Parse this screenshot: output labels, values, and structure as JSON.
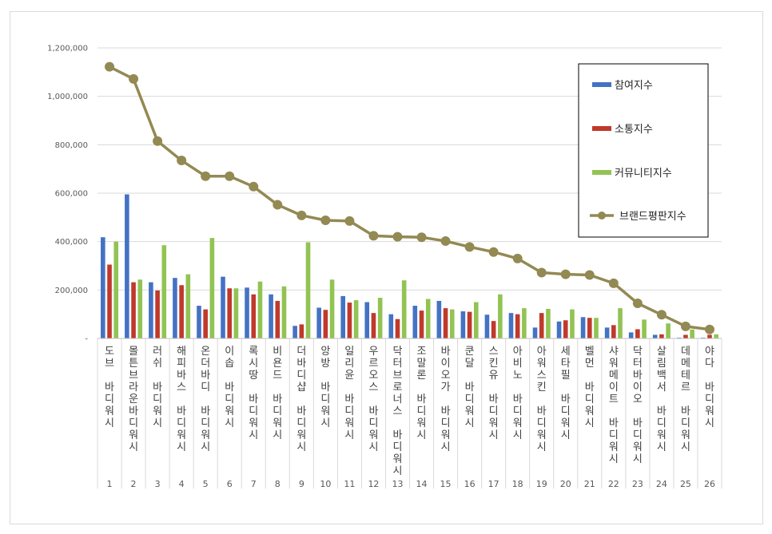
{
  "chart_data": {
    "type": "bar",
    "title": "",
    "xlabel": "",
    "ylabel": "",
    "ylim": [
      0,
      1200000
    ],
    "yticks": [
      0,
      200000,
      400000,
      600000,
      800000,
      1000000,
      1200000
    ],
    "ytick_labels": [
      "-",
      "200,000",
      "400,000",
      "600,000",
      "800,000",
      "1,000,000",
      "1,200,000"
    ],
    "grid": true,
    "legend_position": "top-right",
    "ranks": [
      "1",
      "2",
      "3",
      "4",
      "5",
      "6",
      "7",
      "8",
      "9",
      "10",
      "11",
      "12",
      "13",
      "14",
      "15",
      "16",
      "17",
      "18",
      "19",
      "20",
      "21",
      "22",
      "23",
      "24",
      "25",
      "26"
    ],
    "categories": [
      "도브 바디워시",
      "몰튼브라운바디워시",
      "러쉬 바디워시",
      "해피바스 바디워시",
      "온더바디 바디워시",
      "이솝 바디워시",
      "록시땅 바디워시",
      "비욘드 바디워시",
      "더바디샵 바디워시",
      "앙방 바디워시",
      "일리윤 바디워시",
      "우르오스 바디워시",
      "닥터브로너스 바디워시",
      "조말론 바디워시",
      "바이오가 바디워시",
      "쿤달 바디워시",
      "스킨유 바디워시",
      "아비노 바디워시",
      "아워스킨 바디워시",
      "세타필 바디워시",
      "벨먼 바디워시",
      "샤워메이트 바디워시",
      "닥터바이오 바디워시",
      "살림백서 바디워시",
      "데메테르 바디워시",
      "야다 바디워시"
    ],
    "series": [
      {
        "name": "참여지수",
        "kind": "bar",
        "color": "#4472c4",
        "values": [
          418000,
          595000,
          232000,
          250000,
          135000,
          255000,
          210000,
          182000,
          52000,
          127000,
          175000,
          150000,
          100000,
          135000,
          155000,
          112000,
          98000,
          105000,
          45000,
          70000,
          88000,
          45000,
          25000,
          15000,
          3000,
          3000
        ]
      },
      {
        "name": "소통지수",
        "kind": "bar",
        "color": "#c0392b",
        "values": [
          305000,
          232000,
          198000,
          220000,
          120000,
          207000,
          182000,
          155000,
          58000,
          118000,
          148000,
          105000,
          80000,
          115000,
          125000,
          110000,
          72000,
          100000,
          105000,
          75000,
          85000,
          55000,
          38000,
          17000,
          15000,
          15000
        ]
      },
      {
        "name": "커뮤니티지수",
        "kind": "bar",
        "color": "#92c353",
        "values": [
          400000,
          243000,
          385000,
          265000,
          415000,
          207000,
          235000,
          215000,
          397000,
          243000,
          158000,
          168000,
          240000,
          163000,
          120000,
          150000,
          182000,
          125000,
          122000,
          120000,
          85000,
          125000,
          78000,
          62000,
          37000,
          17000
        ]
      },
      {
        "name": "브랜드평판지수",
        "kind": "line",
        "color": "#938953",
        "values": [
          1122000,
          1072000,
          815000,
          735000,
          670000,
          670000,
          627000,
          552000,
          508000,
          488000,
          485000,
          424000,
          420000,
          418000,
          402000,
          378000,
          357000,
          330000,
          272000,
          265000,
          262000,
          228000,
          145000,
          98000,
          50000,
          37000
        ]
      }
    ]
  }
}
